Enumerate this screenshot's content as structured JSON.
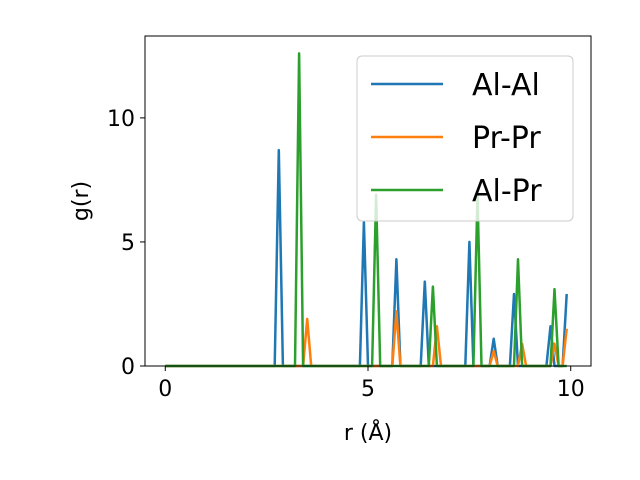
{
  "chart_data": {
    "type": "line",
    "xlabel": "r (Å)",
    "ylabel": "g(r)",
    "xlim": [
      -0.5,
      10.5
    ],
    "ylim": [
      0,
      13.3
    ],
    "xticks": [
      0,
      5,
      10
    ],
    "yticks": [
      0,
      5,
      10
    ],
    "grid": false,
    "legend_position": "top-right",
    "series": [
      {
        "name": "Al-Al",
        "color": "#1f77b4",
        "points": [
          [
            0,
            0
          ],
          [
            2.7,
            0
          ],
          [
            2.8,
            8.7
          ],
          [
            2.9,
            0
          ],
          [
            4.8,
            0
          ],
          [
            4.9,
            5.8
          ],
          [
            5.0,
            0
          ],
          [
            5.6,
            0
          ],
          [
            5.7,
            4.3
          ],
          [
            5.8,
            0
          ],
          [
            6.3,
            0
          ],
          [
            6.4,
            3.4
          ],
          [
            6.5,
            0
          ],
          [
            7.4,
            0
          ],
          [
            7.5,
            5.0
          ],
          [
            7.6,
            0
          ],
          [
            8.0,
            0
          ],
          [
            8.1,
            1.1
          ],
          [
            8.2,
            0
          ],
          [
            8.5,
            0
          ],
          [
            8.6,
            2.9
          ],
          [
            8.7,
            0
          ],
          [
            9.4,
            0
          ],
          [
            9.5,
            1.6
          ],
          [
            9.6,
            0
          ],
          [
            9.8,
            0
          ],
          [
            9.9,
            2.9
          ]
        ]
      },
      {
        "name": "Pr-Pr",
        "color": "#ff7f0e",
        "points": [
          [
            0,
            0
          ],
          [
            3.4,
            0
          ],
          [
            3.5,
            1.9
          ],
          [
            3.6,
            0
          ],
          [
            5.6,
            0
          ],
          [
            5.7,
            2.2
          ],
          [
            5.8,
            0
          ],
          [
            6.6,
            0
          ],
          [
            6.7,
            1.6
          ],
          [
            6.8,
            0
          ],
          [
            8.0,
            0
          ],
          [
            8.1,
            0.6
          ],
          [
            8.2,
            0
          ],
          [
            8.7,
            0
          ],
          [
            8.8,
            0.9
          ],
          [
            8.9,
            0
          ],
          [
            9.5,
            0
          ],
          [
            9.6,
            0.9
          ],
          [
            9.7,
            0
          ],
          [
            9.8,
            0
          ],
          [
            9.9,
            1.5
          ]
        ]
      },
      {
        "name": "Al-Pr",
        "color": "#2ca02c",
        "points": [
          [
            0,
            0
          ],
          [
            3.2,
            0
          ],
          [
            3.3,
            12.6
          ],
          [
            3.4,
            0
          ],
          [
            5.1,
            0
          ],
          [
            5.2,
            6.9
          ],
          [
            5.3,
            0
          ],
          [
            6.5,
            0
          ],
          [
            6.6,
            3.2
          ],
          [
            6.7,
            0
          ],
          [
            7.6,
            0
          ],
          [
            7.7,
            6.9
          ],
          [
            7.8,
            0
          ],
          [
            8.6,
            0
          ],
          [
            8.7,
            4.3
          ],
          [
            8.8,
            0
          ],
          [
            9.5,
            0
          ],
          [
            9.6,
            3.1
          ],
          [
            9.7,
            0
          ],
          [
            9.9,
            0
          ]
        ]
      }
    ]
  }
}
